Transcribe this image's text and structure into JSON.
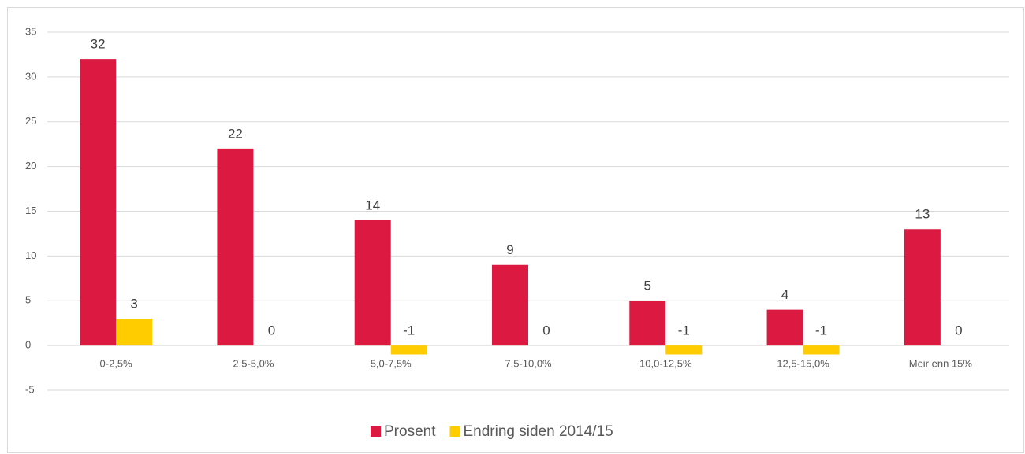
{
  "chart_data": {
    "type": "bar",
    "categories": [
      "0-2,5%",
      "2,5-5,0%",
      "5,0-7,5%",
      "7,5-10,0%",
      "10,0-12,5%",
      "12,5-15,0%",
      "Meir enn 15%"
    ],
    "series": [
      {
        "name": "Prosent",
        "color": "#dc1941",
        "values": [
          32,
          22,
          14,
          9,
          5,
          4,
          13
        ]
      },
      {
        "name": "Endring siden 2014/15",
        "color": "#ffcc00",
        "values": [
          3,
          0,
          -1,
          0,
          -1,
          -1,
          0
        ]
      }
    ],
    "ylim": [
      -5,
      35
    ],
    "yticks": [
      -5,
      0,
      5,
      10,
      15,
      20,
      25,
      30,
      35
    ],
    "grid": true,
    "legend": "bottom"
  }
}
